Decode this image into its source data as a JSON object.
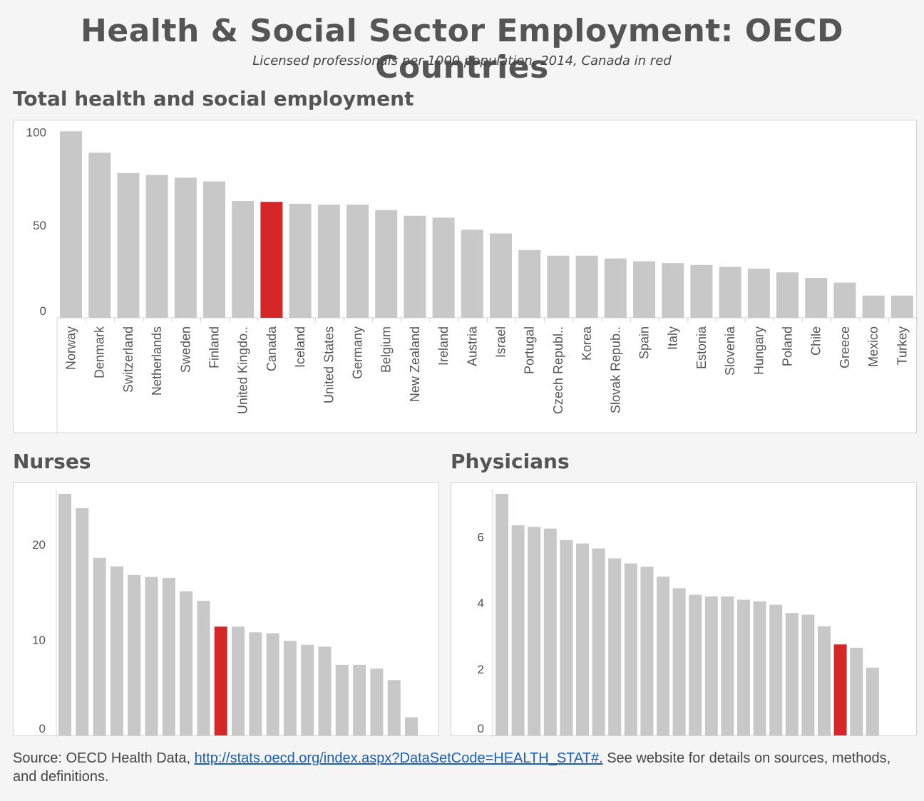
{
  "title": "Health & Social Sector Employment: OECD Countries",
  "subtitle": "Licensed professionals per 1000 population, 2014, Canada in red",
  "colors": {
    "bar": "#c8c8c8",
    "highlight": "#d62728",
    "axis": "#d4d4d4",
    "tick_text": "#555555"
  },
  "source": {
    "prefix": "Source: OECD Health Data, ",
    "link_text": "http://stats.oecd.org/index.aspx?DataSetCode=HEALTH_STAT#.",
    "suffix": " See website for details on sources, methods, and definitions."
  },
  "chart_data": [
    {
      "id": "total",
      "type": "bar",
      "title": "Total health and social employment",
      "categories": [
        "Norway",
        "Denmark",
        "Switzerland",
        "Netherlands",
        "Sweden",
        "Finland",
        "United Kingdo..",
        "Canada",
        "Iceland",
        "United States",
        "Germany",
        "Belgium",
        "New Zealand",
        "Ireland",
        "Austria",
        "Israel",
        "Portugal",
        "Czech Republ..",
        "Korea",
        "Slovak Repub..",
        "Spain",
        "Italy",
        "Estonia",
        "Slovenia",
        "Hungary",
        "Poland",
        "Chile",
        "Greece",
        "Mexico",
        "Turkey"
      ],
      "values": [
        100.5,
        89,
        78,
        77,
        75.5,
        73.5,
        63,
        62.5,
        61.5,
        61,
        61,
        58,
        55,
        54,
        47.5,
        45.5,
        36.5,
        33.5,
        33.5,
        32,
        30.5,
        29.5,
        28.5,
        27.5,
        26.5,
        24.5,
        21.5,
        19,
        12,
        12
      ],
      "highlight_index": 7,
      "yticks": [
        0,
        50,
        100
      ],
      "ylim": [
        0,
        101
      ],
      "xlabel": "",
      "ylabel": ""
    },
    {
      "id": "nurses",
      "type": "bar",
      "title": "Nurses",
      "values": [
        25.3,
        23.8,
        18.6,
        17.7,
        16.8,
        16.6,
        16.5,
        15.1,
        14.1,
        11.4,
        11.4,
        10.8,
        10.7,
        9.9,
        9.5,
        9.3,
        7.4,
        7.4,
        7.0,
        5.8,
        1.9
      ],
      "highlight_index": 9,
      "yticks": [
        0,
        10,
        20
      ],
      "ylim": [
        0,
        25.3
      ],
      "xlabel": "",
      "ylabel": ""
    },
    {
      "id": "physicians",
      "type": "bar",
      "title": "Physicians",
      "values": [
        7.3,
        6.35,
        6.3,
        6.25,
        5.9,
        5.8,
        5.65,
        5.35,
        5.2,
        5.1,
        4.8,
        4.45,
        4.25,
        4.2,
        4.2,
        4.1,
        4.05,
        3.95,
        3.7,
        3.65,
        3.3,
        2.75,
        2.65,
        2.05
      ],
      "highlight_index": 21,
      "yticks": [
        0,
        2,
        4,
        6
      ],
      "ylim": [
        0,
        7.3
      ],
      "xlabel": "",
      "ylabel": ""
    }
  ]
}
